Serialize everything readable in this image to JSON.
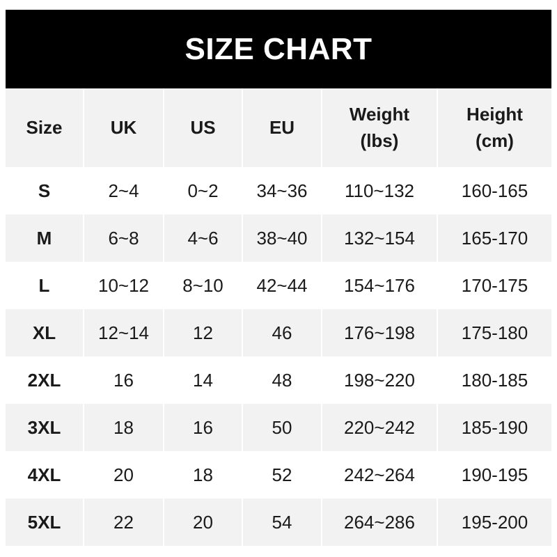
{
  "title": "SIZE CHART",
  "columns": [
    "Size",
    "UK",
    "US",
    "EU",
    "Weight (lbs)",
    "Height (cm)"
  ],
  "column_lines": [
    [
      "Size"
    ],
    [
      "UK"
    ],
    [
      "US"
    ],
    [
      "EU"
    ],
    [
      "Weight",
      "(lbs)"
    ],
    [
      "Height",
      "(cm)"
    ]
  ],
  "rows": [
    [
      "S",
      "2~4",
      "0~2",
      "34~36",
      "110~132",
      "160-165"
    ],
    [
      "M",
      "6~8",
      "4~6",
      "38~40",
      "132~154",
      "165-170"
    ],
    [
      "L",
      "10~12",
      "8~10",
      "42~44",
      "154~176",
      "170-175"
    ],
    [
      "XL",
      "12~14",
      "12",
      "46",
      "176~198",
      "175-180"
    ],
    [
      "2XL",
      "16",
      "14",
      "48",
      "198~220",
      "180-185"
    ],
    [
      "3XL",
      "18",
      "16",
      "50",
      "220~242",
      "185-190"
    ],
    [
      "4XL",
      "20",
      "18",
      "52",
      "242~264",
      "190-195"
    ],
    [
      "5XL",
      "22",
      "20",
      "54",
      "264~286",
      "195-200"
    ]
  ]
}
